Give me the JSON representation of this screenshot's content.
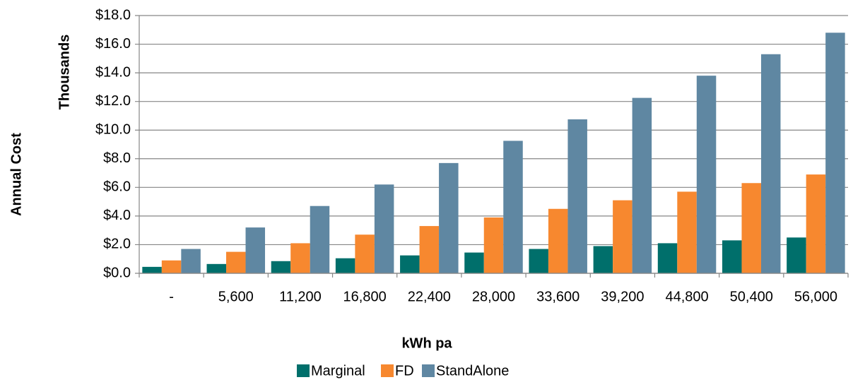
{
  "chart_data": {
    "type": "bar",
    "xlabel": "kWh pa",
    "ylabel": "Annual Cost",
    "yunit": "Thousands",
    "categories": [
      "-",
      "5,600",
      "11,200",
      "16,800",
      "22,400",
      "28,000",
      "33,600",
      "39,200",
      "44,800",
      "50,400",
      "56,000"
    ],
    "series": [
      {
        "name": "Marginal",
        "color": "#006f6b",
        "values": [
          0.45,
          0.65,
          0.85,
          1.05,
          1.25,
          1.45,
          1.7,
          1.9,
          2.1,
          2.3,
          2.5
        ]
      },
      {
        "name": "FD",
        "color": "#f7882f",
        "values": [
          0.9,
          1.5,
          2.1,
          2.7,
          3.3,
          3.9,
          4.5,
          5.1,
          5.7,
          6.3,
          6.9
        ]
      },
      {
        "name": "StandAlone",
        "color": "#5f87a2",
        "values": [
          1.7,
          3.2,
          4.7,
          6.2,
          7.7,
          9.25,
          10.75,
          12.25,
          13.8,
          15.3,
          16.8
        ]
      }
    ],
    "ylim": [
      0,
      18
    ],
    "yticks": [
      {
        "value": 0,
        "label": "$0.0"
      },
      {
        "value": 2,
        "label": "$2.0"
      },
      {
        "value": 4,
        "label": "$4.0"
      },
      {
        "value": 6,
        "label": "$6.0"
      },
      {
        "value": 8,
        "label": "$8.0"
      },
      {
        "value": 10,
        "label": "$10.0"
      },
      {
        "value": 12,
        "label": "$12.0"
      },
      {
        "value": 14,
        "label": "$14.0"
      },
      {
        "value": 16,
        "label": "$16.0"
      },
      {
        "value": 18,
        "label": "$18.0"
      }
    ],
    "grid": true,
    "legend": "bottom"
  }
}
